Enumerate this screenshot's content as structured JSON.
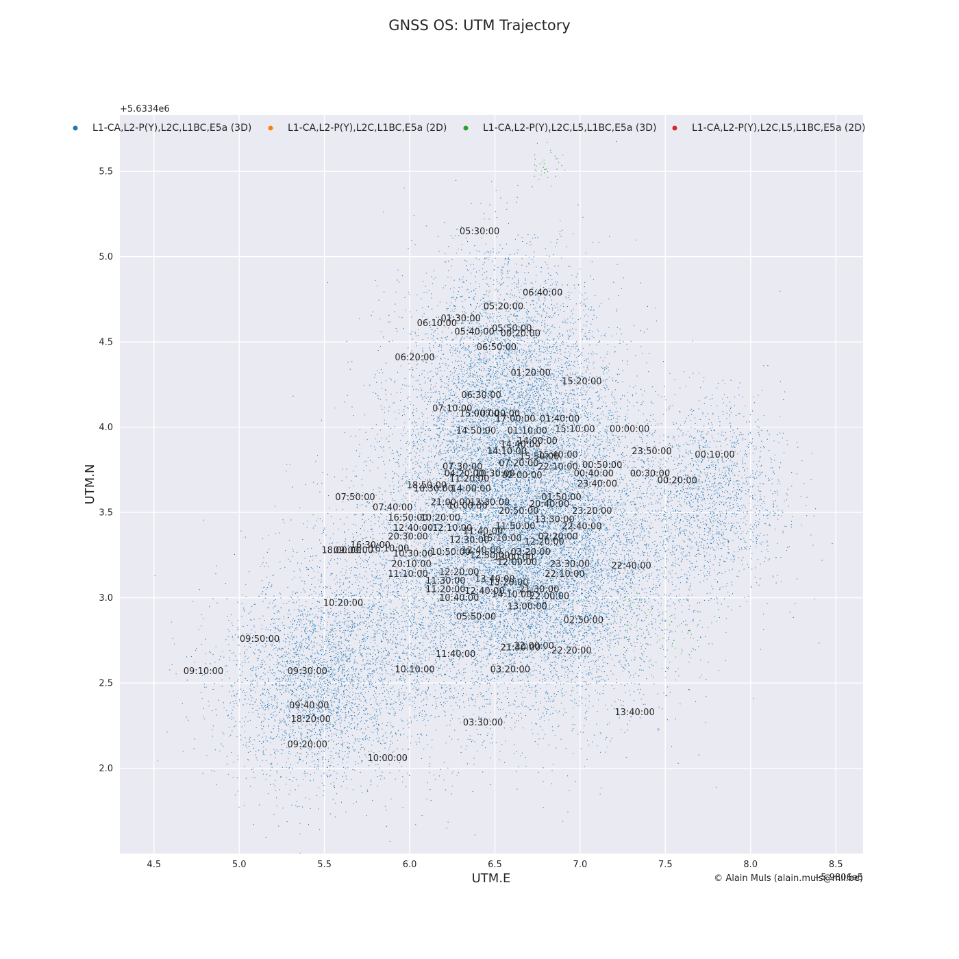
{
  "chart_data": {
    "type": "scatter",
    "title": "GNSS OS: UTM Trajectory",
    "xlabel": "UTM.E",
    "ylabel": "UTM.N",
    "x_offset_text": "+5.9806e5",
    "y_offset_text": "+5.6334e6",
    "xlim": [
      4.3,
      8.66
    ],
    "ylim": [
      1.5,
      5.83
    ],
    "x_ticks": [
      4.5,
      5.0,
      5.5,
      6.0,
      6.5,
      7.0,
      7.5,
      8.0,
      8.5
    ],
    "x_tick_labels": [
      "4.5",
      "5.0",
      "5.5",
      "6.0",
      "6.5",
      "7.0",
      "7.5",
      "8.0",
      "8.5"
    ],
    "y_ticks": [
      2.0,
      2.5,
      3.0,
      3.5,
      4.0,
      4.5,
      5.0,
      5.5
    ],
    "y_tick_labels": [
      "2.0",
      "2.5",
      "3.0",
      "3.5",
      "4.0",
      "4.5",
      "5.0",
      "5.5"
    ],
    "grid": true,
    "legend_position": "top",
    "credit": "© Alain Muls (alain.muls@mil.be)",
    "series": [
      {
        "name": "L1-CA,L2-P(Y),L2C,L1BC,E5a (3D)",
        "color": "#1f77b4"
      },
      {
        "name": "L1-CA,L2-P(Y),L2C,L1BC,E5a (2D)",
        "color": "#ff7f0e"
      },
      {
        "name": "L1-CA,L2-P(Y),L2C,L5,L1BC,E5a (3D)",
        "color": "#2ca02c"
      },
      {
        "name": "L1-CA,L2-P(Y),L2C,L5,L1BC,E5a (2D)",
        "color": "#d62728"
      }
    ],
    "density_clusters": [
      {
        "series": 0,
        "cx": 6.6,
        "cy": 3.3,
        "sx": 0.38,
        "sy": 0.42,
        "weight": 0.36
      },
      {
        "series": 0,
        "cx": 6.6,
        "cy": 4.05,
        "sx": 0.32,
        "sy": 0.38,
        "weight": 0.2
      },
      {
        "series": 0,
        "cx": 5.45,
        "cy": 2.5,
        "sx": 0.28,
        "sy": 0.3,
        "weight": 0.12
      },
      {
        "series": 0,
        "cx": 6.9,
        "cy": 3.1,
        "sx": 0.35,
        "sy": 0.4,
        "weight": 0.14
      },
      {
        "series": 0,
        "cx": 7.75,
        "cy": 3.6,
        "sx": 0.22,
        "sy": 0.28,
        "weight": 0.07
      },
      {
        "series": 0,
        "cx": 6.0,
        "cy": 2.9,
        "sx": 0.35,
        "sy": 0.4,
        "weight": 0.08
      },
      {
        "series": 0,
        "cx": 6.55,
        "cy": 4.6,
        "sx": 0.25,
        "sy": 0.3,
        "weight": 0.03
      },
      {
        "series": 2,
        "cx": 6.8,
        "cy": 5.55,
        "sx": 0.05,
        "sy": 0.07,
        "weight": 0.3
      },
      {
        "series": 2,
        "cx": 7.35,
        "cy": 2.9,
        "sx": 0.1,
        "sy": 0.12,
        "weight": 0.4
      },
      {
        "series": 2,
        "cx": 7.6,
        "cy": 2.75,
        "sx": 0.07,
        "sy": 0.07,
        "weight": 0.3
      }
    ],
    "annotations": [
      {
        "text": "05:30:00",
        "x": 6.41,
        "y": 5.15
      },
      {
        "text": "06:40:00",
        "x": 6.78,
        "y": 4.79
      },
      {
        "text": "05:20:00",
        "x": 6.55,
        "y": 4.71
      },
      {
        "text": "01:30:00",
        "x": 6.3,
        "y": 4.64
      },
      {
        "text": "06:10:00",
        "x": 6.16,
        "y": 4.61
      },
      {
        "text": "05:50:00",
        "x": 6.6,
        "y": 4.58
      },
      {
        "text": "05:40:00",
        "x": 6.38,
        "y": 4.56
      },
      {
        "text": "00:20:00",
        "x": 6.65,
        "y": 4.55
      },
      {
        "text": "06:50:00",
        "x": 6.51,
        "y": 4.47
      },
      {
        "text": "06:20:00",
        "x": 6.03,
        "y": 4.41
      },
      {
        "text": "01:20:00",
        "x": 6.71,
        "y": 4.32
      },
      {
        "text": "15:20:00",
        "x": 7.01,
        "y": 4.27
      },
      {
        "text": "06:30:00",
        "x": 6.42,
        "y": 4.19
      },
      {
        "text": "07:10:00",
        "x": 6.25,
        "y": 4.11
      },
      {
        "text": "15:00:00",
        "x": 6.41,
        "y": 4.08
      },
      {
        "text": "07:00:00",
        "x": 6.53,
        "y": 4.08
      },
      {
        "text": "17:00:00",
        "x": 6.62,
        "y": 4.05
      },
      {
        "text": "01:40:00",
        "x": 6.88,
        "y": 4.05
      },
      {
        "text": "14:50:00",
        "x": 6.39,
        "y": 3.98
      },
      {
        "text": "01:10:00",
        "x": 6.69,
        "y": 3.98
      },
      {
        "text": "15:10:00",
        "x": 6.97,
        "y": 3.99
      },
      {
        "text": "00:00:00",
        "x": 7.29,
        "y": 3.99
      },
      {
        "text": "14:40:00",
        "x": 6.65,
        "y": 3.9
      },
      {
        "text": "14:00:00",
        "x": 6.75,
        "y": 3.92
      },
      {
        "text": "14:10:00",
        "x": 6.57,
        "y": 3.86
      },
      {
        "text": "23:50:00",
        "x": 7.42,
        "y": 3.86
      },
      {
        "text": "00:10:00",
        "x": 7.79,
        "y": 3.84
      },
      {
        "text": "15:50:00",
        "x": 6.76,
        "y": 3.83
      },
      {
        "text": "15:40:00",
        "x": 6.87,
        "y": 3.84
      },
      {
        "text": "07:20:00",
        "x": 6.64,
        "y": 3.79
      },
      {
        "text": "00:50:00",
        "x": 7.13,
        "y": 3.78
      },
      {
        "text": "07:30:00",
        "x": 6.31,
        "y": 3.77
      },
      {
        "text": "22:10:00",
        "x": 6.87,
        "y": 3.77
      },
      {
        "text": "04:20:00",
        "x": 6.32,
        "y": 3.73
      },
      {
        "text": "00:40:00",
        "x": 7.08,
        "y": 3.73
      },
      {
        "text": "00:30:00",
        "x": 7.41,
        "y": 3.73
      },
      {
        "text": "10:30:00",
        "x": 6.5,
        "y": 3.73
      },
      {
        "text": "02:00:00",
        "x": 6.66,
        "y": 3.72
      },
      {
        "text": "11:20:00",
        "x": 6.35,
        "y": 3.7
      },
      {
        "text": "00:20:00",
        "x": 7.57,
        "y": 3.69
      },
      {
        "text": "23:40:00",
        "x": 7.1,
        "y": 3.67
      },
      {
        "text": "18:50:00",
        "x": 6.1,
        "y": 3.66
      },
      {
        "text": "10:30:00",
        "x": 6.14,
        "y": 3.64
      },
      {
        "text": "14:00:00",
        "x": 6.36,
        "y": 3.64
      },
      {
        "text": "07:50:00",
        "x": 5.68,
        "y": 3.59
      },
      {
        "text": "01:50:00",
        "x": 6.89,
        "y": 3.59
      },
      {
        "text": "21:00:00",
        "x": 6.24,
        "y": 3.56
      },
      {
        "text": "13:30:00",
        "x": 6.47,
        "y": 3.56
      },
      {
        "text": "20:40:00",
        "x": 6.82,
        "y": 3.55
      },
      {
        "text": "10:00:00",
        "x": 6.34,
        "y": 3.54
      },
      {
        "text": "07:40:00",
        "x": 5.9,
        "y": 3.53
      },
      {
        "text": "20:50:00",
        "x": 6.64,
        "y": 3.51
      },
      {
        "text": "23:20:00",
        "x": 7.07,
        "y": 3.51
      },
      {
        "text": "16:50:00",
        "x": 5.99,
        "y": 3.47
      },
      {
        "text": "10:20:00",
        "x": 6.18,
        "y": 3.47
      },
      {
        "text": "13:30:00",
        "x": 6.85,
        "y": 3.46
      },
      {
        "text": "12:40:00",
        "x": 6.02,
        "y": 3.41
      },
      {
        "text": "12:10:00",
        "x": 6.25,
        "y": 3.41
      },
      {
        "text": "11:40:00",
        "x": 6.43,
        "y": 3.39
      },
      {
        "text": "11:50:00",
        "x": 6.62,
        "y": 3.42
      },
      {
        "text": "22:40:00",
        "x": 7.01,
        "y": 3.42
      },
      {
        "text": "20:30:00",
        "x": 5.99,
        "y": 3.36
      },
      {
        "text": "12:30:00",
        "x": 6.35,
        "y": 3.34
      },
      {
        "text": "15:10:00",
        "x": 6.54,
        "y": 3.35
      },
      {
        "text": "02:20:00",
        "x": 6.87,
        "y": 3.36
      },
      {
        "text": "16:30:00",
        "x": 5.77,
        "y": 3.31
      },
      {
        "text": "16:10:00",
        "x": 5.88,
        "y": 3.29
      },
      {
        "text": "12:20:00",
        "x": 6.79,
        "y": 3.33
      },
      {
        "text": "18:00:00",
        "x": 5.6,
        "y": 3.28
      },
      {
        "text": "09:00:00",
        "x": 5.67,
        "y": 3.28
      },
      {
        "text": "10:30:00",
        "x": 6.02,
        "y": 3.26
      },
      {
        "text": "10:50:00",
        "x": 6.24,
        "y": 3.27
      },
      {
        "text": "12:40:00",
        "x": 6.42,
        "y": 3.28
      },
      {
        "text": "03:20:00",
        "x": 6.71,
        "y": 3.27
      },
      {
        "text": "12:50:00",
        "x": 6.47,
        "y": 3.25
      },
      {
        "text": "13:00:00",
        "x": 6.61,
        "y": 3.24
      },
      {
        "text": "12:00:00",
        "x": 6.63,
        "y": 3.21
      },
      {
        "text": "20:10:00",
        "x": 6.01,
        "y": 3.2
      },
      {
        "text": "23:30:00",
        "x": 6.94,
        "y": 3.2
      },
      {
        "text": "22:40:00",
        "x": 7.3,
        "y": 3.19
      },
      {
        "text": "11:10:00",
        "x": 5.99,
        "y": 3.14
      },
      {
        "text": "12:20:00",
        "x": 6.29,
        "y": 3.15
      },
      {
        "text": "22:10:00",
        "x": 6.91,
        "y": 3.14
      },
      {
        "text": "11:30:00",
        "x": 6.21,
        "y": 3.1
      },
      {
        "text": "13:40:00",
        "x": 6.5,
        "y": 3.11
      },
      {
        "text": "13:20:00",
        "x": 6.58,
        "y": 3.09
      },
      {
        "text": "11:20:00",
        "x": 6.21,
        "y": 3.05
      },
      {
        "text": "12:40:00",
        "x": 6.44,
        "y": 3.04
      },
      {
        "text": "21:30:00",
        "x": 6.76,
        "y": 3.05
      },
      {
        "text": "14:10:00",
        "x": 6.6,
        "y": 3.02
      },
      {
        "text": "22:00:00",
        "x": 6.82,
        "y": 3.01
      },
      {
        "text": "10:40:00",
        "x": 6.29,
        "y": 3.0
      },
      {
        "text": "10:20:00",
        "x": 5.61,
        "y": 2.97
      },
      {
        "text": "13:00:00",
        "x": 6.69,
        "y": 2.95
      },
      {
        "text": "05:50:00",
        "x": 6.39,
        "y": 2.89
      },
      {
        "text": "02:50:00",
        "x": 7.02,
        "y": 2.87
      },
      {
        "text": "09:50:00",
        "x": 5.12,
        "y": 2.76
      },
      {
        "text": "21:30:00",
        "x": 6.65,
        "y": 2.71
      },
      {
        "text": "22:00:00",
        "x": 6.73,
        "y": 2.72
      },
      {
        "text": "22:20:00",
        "x": 6.95,
        "y": 2.69
      },
      {
        "text": "11:40:00",
        "x": 6.27,
        "y": 2.67
      },
      {
        "text": "09:10:00",
        "x": 4.79,
        "y": 2.57
      },
      {
        "text": "09:30:00",
        "x": 5.4,
        "y": 2.57
      },
      {
        "text": "10:10:00",
        "x": 6.03,
        "y": 2.58
      },
      {
        "text": "03:20:00",
        "x": 6.59,
        "y": 2.58
      },
      {
        "text": "09:40:00",
        "x": 5.41,
        "y": 2.37
      },
      {
        "text": "18:20:00",
        "x": 5.42,
        "y": 2.29
      },
      {
        "text": "13:40:00",
        "x": 7.32,
        "y": 2.33
      },
      {
        "text": "03:30:00",
        "x": 6.43,
        "y": 2.27
      },
      {
        "text": "09:20:00",
        "x": 5.4,
        "y": 2.14
      },
      {
        "text": "10:00:00",
        "x": 5.87,
        "y": 2.06
      }
    ]
  }
}
